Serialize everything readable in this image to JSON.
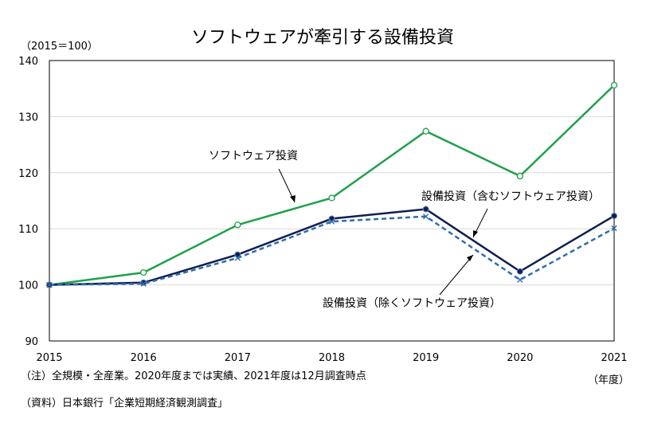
{
  "chart_data": {
    "type": "line",
    "title": "ソフトウェアが牽引する設備投資",
    "unit_label": "（2015＝100）",
    "x_unit_label": "（年度）",
    "categories": [
      "2015",
      "2016",
      "2017",
      "2018",
      "2019",
      "2020",
      "2021"
    ],
    "ylim": [
      90,
      140
    ],
    "yticks": [
      90,
      100,
      110,
      120,
      130,
      140
    ],
    "grid": true,
    "series": [
      {
        "name": "ソフトウェア投資",
        "color": "#1fa04a",
        "line_style": "solid",
        "marker": "open-circle",
        "values": [
          100,
          102.2,
          110.7,
          115.5,
          127.4,
          119.4,
          135.6
        ]
      },
      {
        "name": "設備投資（含むソフトウェア投資）",
        "color": "#0f1f4f",
        "line_style": "solid",
        "marker": "filled-circle",
        "values": [
          100,
          100.4,
          105.4,
          111.8,
          113.5,
          102.4,
          112.3
        ]
      },
      {
        "name": "設備投資（除くソフトウェア投資）",
        "color": "#2f6db0",
        "line_style": "dashed",
        "marker": "x",
        "values": [
          100,
          100.2,
          104.8,
          111.3,
          112.2,
          100.9,
          110.1
        ]
      }
    ]
  },
  "notes": {
    "note1": "（注）全規模・全産業。2020年度までは実績、2021年度は12月調査時点",
    "note2": "（資料）日本銀行「企業短期経済観測調査」"
  }
}
